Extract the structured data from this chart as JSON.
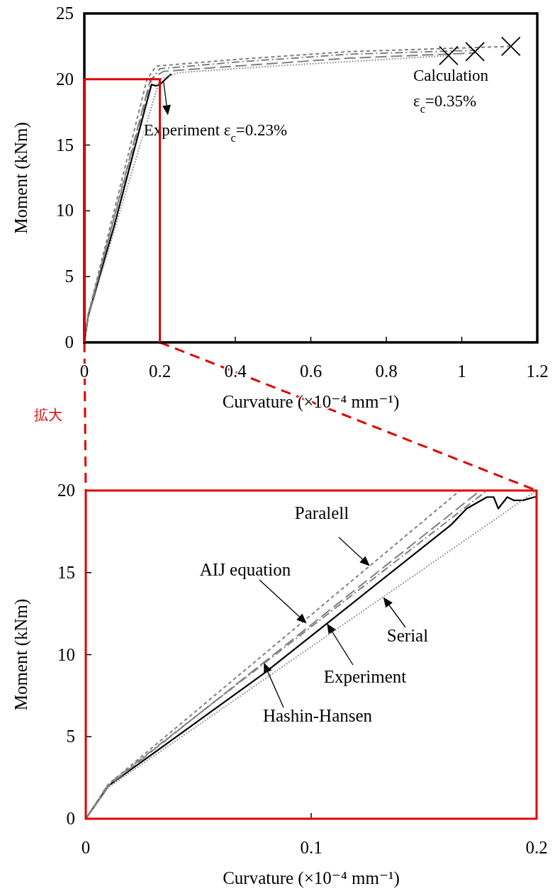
{
  "chart_data": [
    {
      "type": "line",
      "xlabel": "Curvature (×10⁻⁴ mm⁻¹)",
      "ylabel": "Moment (kNm)",
      "xlim": [
        0,
        1.2
      ],
      "ylim": [
        0,
        25
      ],
      "xticks": [
        0,
        0.2,
        0.4,
        0.6,
        0.8,
        1,
        1.2
      ],
      "yticks": [
        0,
        5,
        10,
        15,
        20,
        25
      ],
      "annotations": [
        {
          "text": "Experiment ε$_{c}$=0.23%",
          "x": 0.21,
          "y": 19.8
        },
        "Calculation ε$_{c}$=0.35%",
        "拡大"
      ],
      "series": [
        {
          "color": "#000000",
          "line_style": "solid",
          "x": [
            0,
            0.01,
            0.079,
            0.107,
            0.162,
            0.178,
            0.19,
            0.2,
            0.215,
            0.23
          ],
          "values": [
            0,
            2,
            8.85,
            11.9,
            17.9,
            19.6,
            19.5,
            19.6,
            20,
            20.4
          ]
        },
        {
          "color": "#808080",
          "line_style": "dashed",
          "x": [
            0,
            0.01,
            0.166,
            0.19,
            0.4,
            0.7,
            1.13
          ],
          "values": [
            0,
            2.1,
            20,
            21,
            21.5,
            22.1,
            22.5
          ]
        },
        {
          "color": "#808080",
          "line_style": "dashdot",
          "x": [
            0,
            0.01,
            0.178,
            0.2,
            0.4,
            0.7,
            1.035
          ],
          "values": [
            0,
            2.1,
            20,
            20.8,
            21.3,
            21.9,
            22.2
          ]
        },
        {
          "color": "#808080",
          "line_style": "longdash",
          "x": [
            0,
            0.01,
            0.175,
            0.21,
            0.4,
            0.7,
            1.035
          ],
          "values": [
            0,
            2,
            20,
            20.6,
            21,
            21.6,
            22
          ]
        },
        {
          "color": "#808080",
          "line_style": "dotted",
          "x": [
            0,
            0.01,
            0.2,
            0.25,
            0.5,
            0.965
          ],
          "values": [
            0,
            1.9,
            20,
            20.5,
            21,
            21.8
          ]
        },
        {
          "type": "scatter",
          "marker": "cross",
          "color": "#000000",
          "x": [
            0.965,
            1.035,
            1.13
          ],
          "values": [
            21.8,
            22.1,
            22.5
          ]
        }
      ]
    },
    {
      "type": "line",
      "xlabel": "Curvature (×10⁻⁴ mm⁻¹)",
      "ylabel": "Moment (kNm)",
      "xlim": [
        0,
        0.2
      ],
      "ylim": [
        0,
        20
      ],
      "xticks": [
        0,
        0.1,
        0.2
      ],
      "yticks": [
        0,
        5,
        10,
        15,
        20
      ],
      "annotations": [
        {
          "text": "Experiment",
          "x": 0.107,
          "y": 11.9
        },
        {
          "text": "Paralell",
          "x": 0.126,
          "y": 15.4
        },
        {
          "text": "AIJ equation",
          "x": 0.098,
          "y": 11.9
        },
        {
          "text": "Hashin-Hansen",
          "x": 0.079,
          "y": 9.5
        },
        {
          "text": "Serial",
          "x": 0.132,
          "y": 13.5
        }
      ],
      "series": [
        {
          "color": "#000000",
          "line_style": "solid",
          "x": [
            0,
            0.01,
            0.079,
            0.107,
            0.162,
            0.169,
            0.178,
            0.181,
            0.183,
            0.187,
            0.19,
            0.194,
            0.199,
            0.2
          ],
          "values": [
            0,
            2,
            8.85,
            11.9,
            17.9,
            18.9,
            19.6,
            19.6,
            18.9,
            19.6,
            19.4,
            19.4,
            19.6,
            19.6
          ]
        },
        {
          "color": "#808080",
          "line_style": "dashed",
          "x": [
            0,
            0.01,
            0.166
          ],
          "values": [
            0,
            2.1,
            20
          ]
        },
        {
          "color": "#808080",
          "line_style": "dashdot",
          "x": [
            0,
            0.01,
            0.178
          ],
          "values": [
            0,
            2.1,
            20
          ]
        },
        {
          "color": "#808080",
          "line_style": "longdash",
          "x": [
            0,
            0.01,
            0.175
          ],
          "values": [
            0,
            2,
            20
          ]
        },
        {
          "color": "#808080",
          "line_style": "dotted",
          "x": [
            0,
            0.01,
            0.2
          ],
          "values": [
            0,
            1.9,
            20
          ]
        }
      ]
    }
  ]
}
